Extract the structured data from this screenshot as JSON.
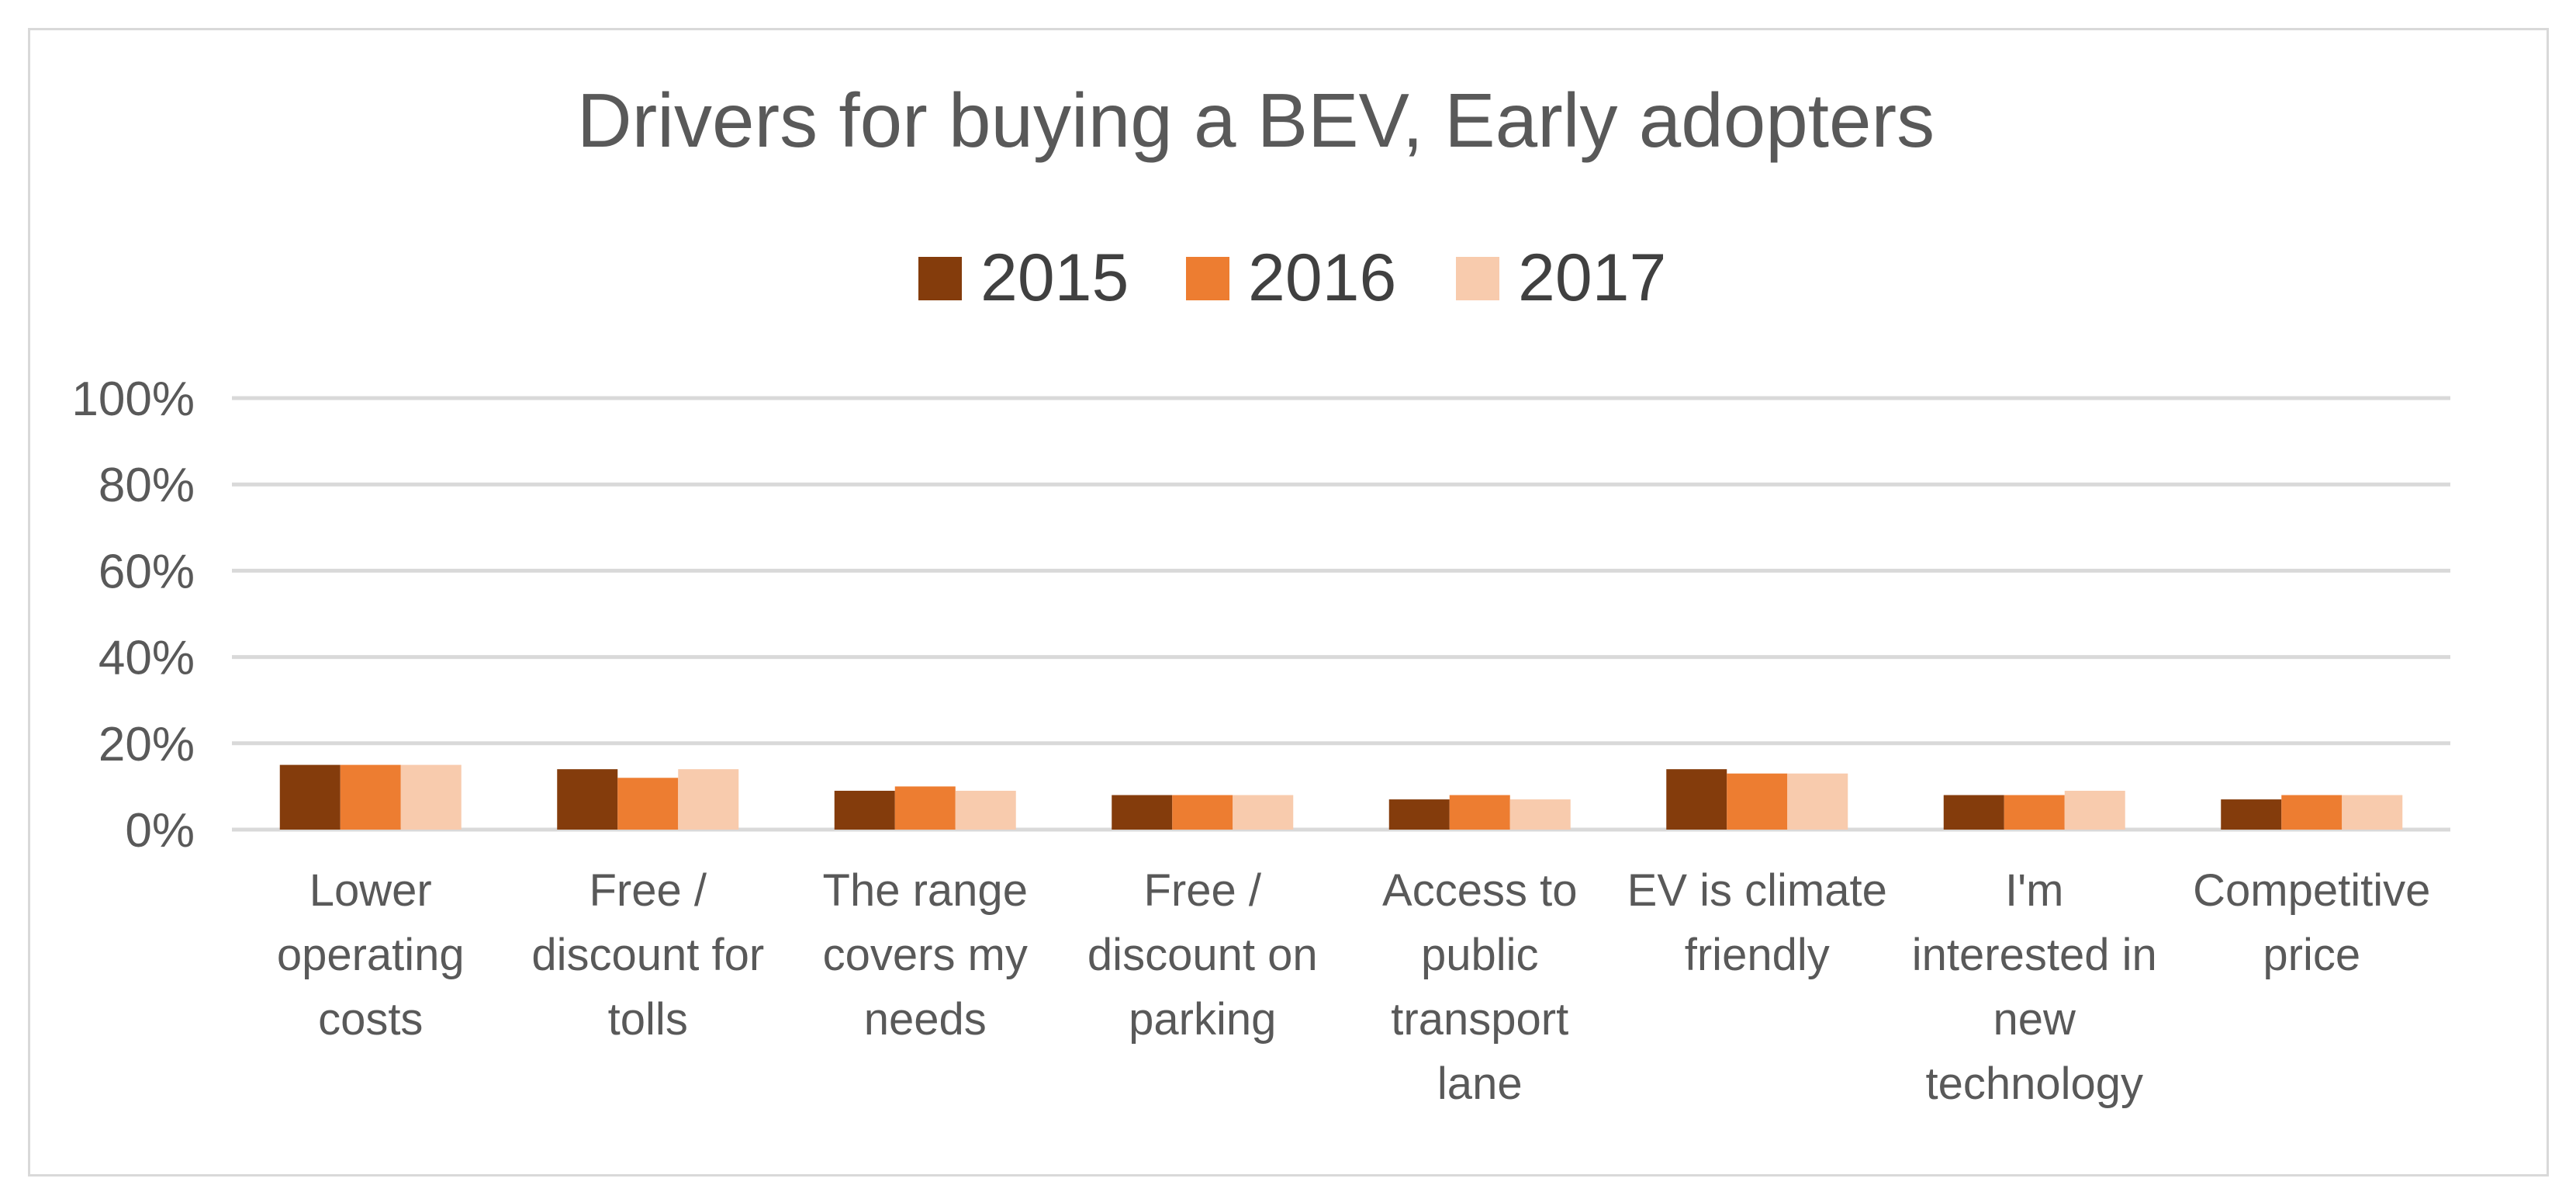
{
  "chart_data": {
    "type": "bar",
    "title": "Drivers for buying a BEV, Early adopters",
    "xlabel": "",
    "ylabel": "",
    "ylim": [
      0,
      100
    ],
    "y_ticks": [
      "0%",
      "20%",
      "40%",
      "60%",
      "80%",
      "100%"
    ],
    "y_tick_values": [
      0,
      20,
      40,
      60,
      80,
      100
    ],
    "grid": true,
    "legend_position": "top-center",
    "categories": [
      [
        "Lower",
        "operating",
        "costs"
      ],
      [
        "Free /",
        "discount for",
        "tolls"
      ],
      [
        "The range",
        "covers my",
        "needs"
      ],
      [
        "Free /",
        "discount on",
        "parking"
      ],
      [
        "Access to",
        "public",
        "transport",
        "lane"
      ],
      [
        "EV is climate",
        "friendly"
      ],
      [
        "I'm",
        "interested in",
        "new",
        "technology"
      ],
      [
        "Competitive",
        "price"
      ]
    ],
    "series": [
      {
        "name": "2015",
        "color": "#843c0c",
        "values": [
          15,
          14,
          9,
          8,
          7,
          14,
          8,
          7
        ]
      },
      {
        "name": "2016",
        "color": "#ed7d31",
        "values": [
          15,
          12,
          10,
          8,
          8,
          13,
          8,
          8
        ]
      },
      {
        "name": "2017",
        "color": "#f8cbad",
        "values": [
          15,
          14,
          9,
          8,
          7,
          13,
          9,
          8
        ]
      }
    ]
  }
}
